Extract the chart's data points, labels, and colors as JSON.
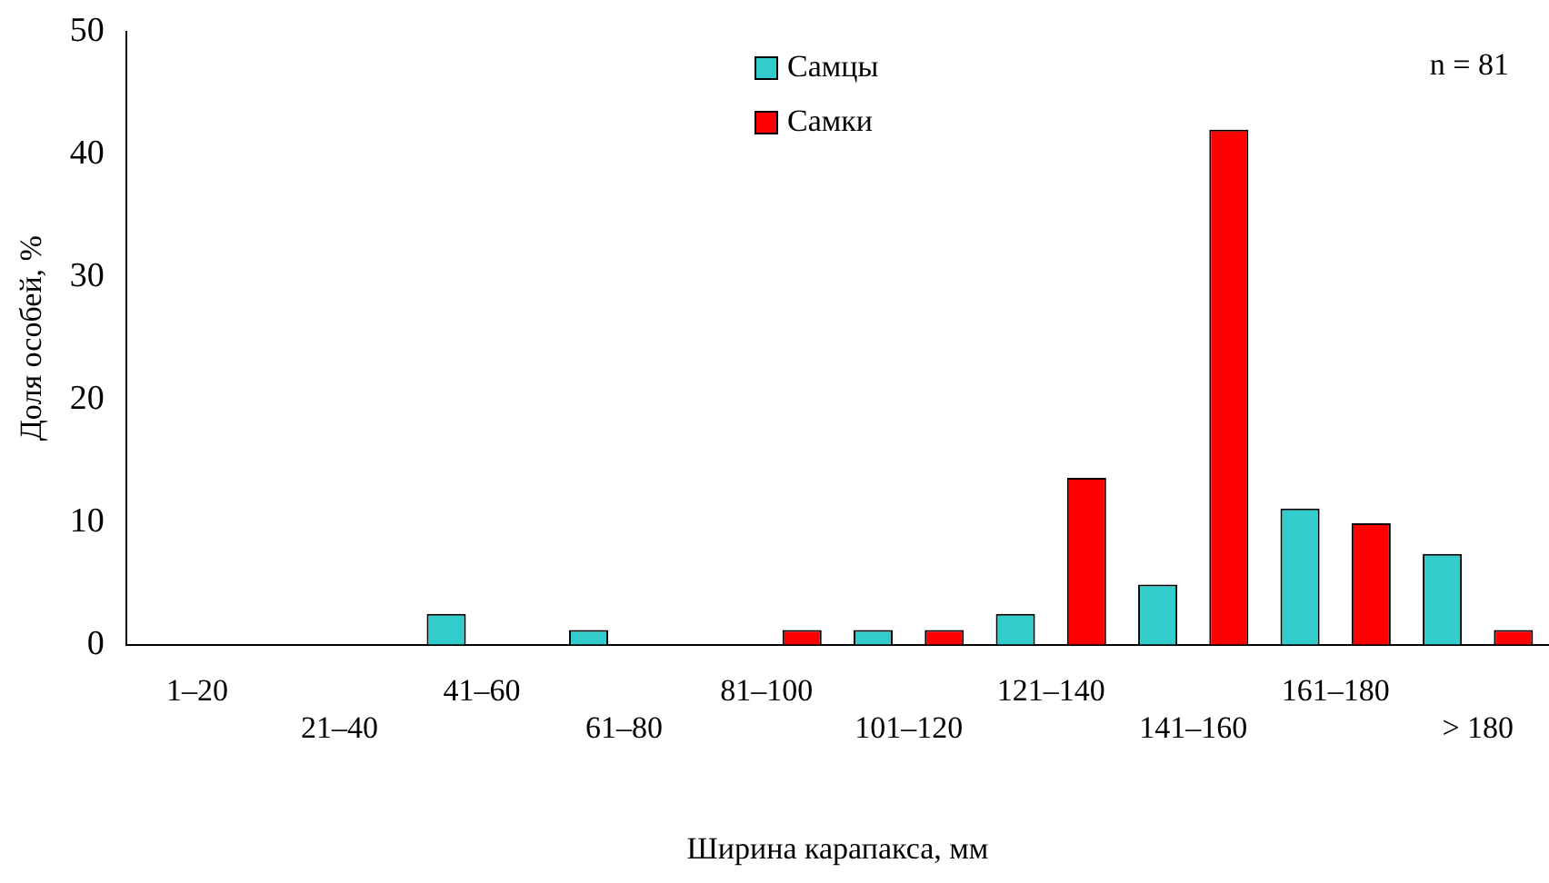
{
  "chart_data": {
    "type": "bar",
    "xlabel": "Ширина карапакса, мм",
    "ylabel": "Доля особей, %",
    "categories": [
      "1–20",
      "21–40",
      "41–60",
      "61–80",
      "81–100",
      "101–120",
      "121–140",
      "141–160",
      "161–180",
      "> 180"
    ],
    "series": [
      {
        "name": "Самцы",
        "color": "#33cccc",
        "values": [
          0,
          0,
          2.5,
          1.2,
          0,
          1.2,
          2.5,
          4.9,
          11.1,
          7.4
        ]
      },
      {
        "name": "Самки",
        "color": "#ff0000",
        "values": [
          0,
          0,
          0,
          0,
          1.2,
          1.2,
          13.6,
          42.0,
          9.9,
          1.2
        ]
      }
    ],
    "ylim": [
      0,
      50
    ],
    "yticks": [
      0,
      10,
      20,
      30,
      40,
      50
    ],
    "grid": false,
    "legend": "top",
    "annotations": [
      "n = 81"
    ]
  }
}
